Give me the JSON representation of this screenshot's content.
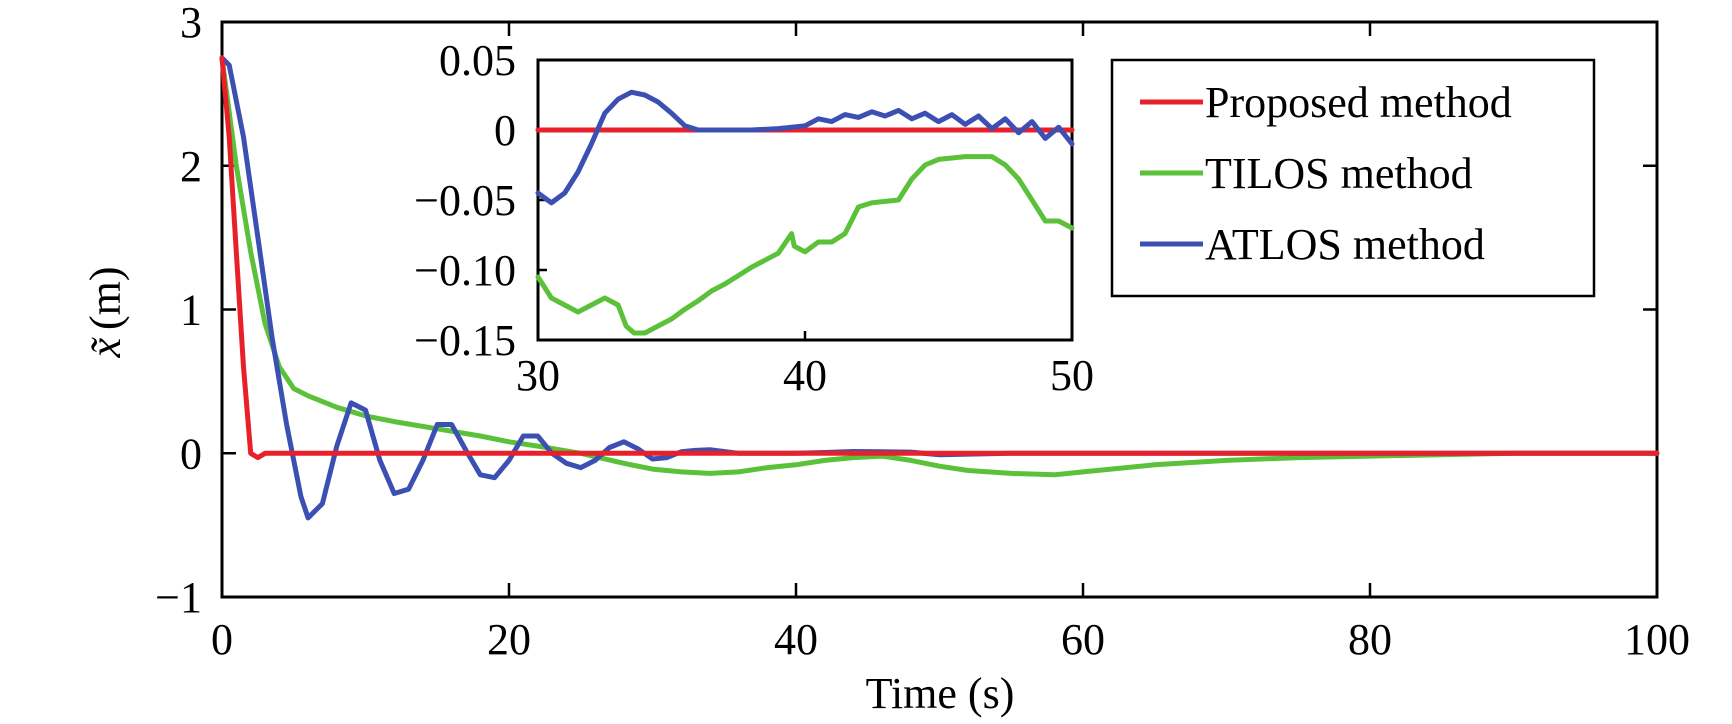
{
  "chart_data": [
    {
      "type": "line",
      "xlabel": "Time (s)",
      "ylabel": "(m)",
      "ylabel_symbol": "x̃",
      "xlim": [
        0,
        100
      ],
      "ylim": [
        -1,
        3
      ],
      "xticks": [
        "0",
        "20",
        "40",
        "60",
        "80",
        "100"
      ],
      "yticks": [
        "−1",
        "0",
        "1",
        "2",
        "3"
      ],
      "grid": false,
      "legend_position": "top-right",
      "series": [
        {
          "name": "Proposed method",
          "color": "#e8202a",
          "x": [
            0,
            0.5,
            1,
            1.5,
            2,
            2.5,
            3,
            4,
            6,
            10,
            20,
            40,
            60,
            80,
            100
          ],
          "y": [
            2.75,
            2.2,
            1.4,
            0.6,
            0.0,
            -0.03,
            0.0,
            0.0,
            0.0,
            0.0,
            0.0,
            0.0,
            0.0,
            0.0,
            0.0
          ]
        },
        {
          "name": "TILOS method",
          "color": "#5cc13a",
          "x": [
            0,
            1,
            2,
            3,
            4,
            5,
            6,
            8,
            10,
            12,
            15,
            18,
            20,
            22,
            25,
            28,
            30,
            32,
            34,
            36,
            38,
            40,
            42,
            44,
            46,
            48,
            50,
            52,
            55,
            58,
            60,
            65,
            70,
            75,
            80,
            85,
            90,
            100
          ],
          "y": [
            2.75,
            2.0,
            1.4,
            0.9,
            0.6,
            0.45,
            0.4,
            0.32,
            0.26,
            0.22,
            0.17,
            0.12,
            0.08,
            0.05,
            0.0,
            -0.07,
            -0.11,
            -0.13,
            -0.14,
            -0.13,
            -0.1,
            -0.08,
            -0.05,
            -0.03,
            -0.02,
            -0.05,
            -0.09,
            -0.12,
            -0.14,
            -0.15,
            -0.13,
            -0.08,
            -0.05,
            -0.03,
            -0.02,
            -0.01,
            0.0,
            0.0
          ]
        },
        {
          "name": "ATLOS method",
          "color": "#3c50b4",
          "x": [
            0,
            0.5,
            1.5,
            2.5,
            3.5,
            4.5,
            5.5,
            6,
            7,
            8,
            9,
            10,
            11,
            12,
            13,
            14,
            15,
            16,
            17,
            18,
            19,
            20,
            21,
            22,
            23,
            24,
            25,
            26,
            27,
            28,
            29,
            30,
            31,
            32,
            33,
            34,
            36,
            38,
            40,
            42,
            44,
            46,
            48,
            50,
            55,
            60,
            70,
            80,
            90,
            100
          ],
          "y": [
            2.75,
            2.7,
            2.2,
            1.5,
            0.8,
            0.2,
            -0.3,
            -0.45,
            -0.35,
            0.05,
            0.35,
            0.3,
            -0.05,
            -0.28,
            -0.25,
            -0.05,
            0.2,
            0.2,
            0.02,
            -0.15,
            -0.17,
            -0.05,
            0.12,
            0.12,
            0.0,
            -0.07,
            -0.1,
            -0.05,
            0.04,
            0.08,
            0.03,
            -0.04,
            -0.03,
            0.01,
            0.02,
            0.025,
            0.0,
            0.0,
            0.0,
            0.005,
            0.012,
            0.01,
            0.008,
            -0.01,
            0.0,
            0.0,
            0.0,
            0.0,
            0.0,
            0.0
          ]
        }
      ]
    },
    {
      "type": "line",
      "inset": true,
      "xlim": [
        30,
        50
      ],
      "ylim": [
        -0.15,
        0.05
      ],
      "xticks": [
        "30",
        "40",
        "50"
      ],
      "yticks": [
        "0.05",
        "0",
        "−0.05",
        "−0.10",
        "−0.15"
      ],
      "grid": false,
      "series": [
        {
          "name": "Proposed method",
          "color": "#e8202a",
          "x": [
            30,
            50
          ],
          "y": [
            0.0,
            0.0
          ]
        },
        {
          "name": "TILOS method",
          "color": "#5cc13a",
          "x": [
            30,
            30.5,
            31,
            31.5,
            32,
            32.5,
            33,
            33.3,
            33.6,
            34,
            34.5,
            35,
            35.5,
            36,
            36.5,
            37,
            37.5,
            38,
            38.5,
            39,
            39.5,
            39.6,
            40,
            40.5,
            41,
            41.5,
            42,
            42.5,
            43,
            43.5,
            44,
            44.5,
            45,
            46,
            47,
            47.5,
            48,
            48.5,
            49,
            49.5,
            50
          ],
          "y": [
            -0.105,
            -0.12,
            -0.125,
            -0.13,
            -0.125,
            -0.12,
            -0.125,
            -0.14,
            -0.145,
            -0.145,
            -0.14,
            -0.135,
            -0.128,
            -0.122,
            -0.115,
            -0.11,
            -0.104,
            -0.098,
            -0.093,
            -0.088,
            -0.074,
            -0.083,
            -0.087,
            -0.08,
            -0.08,
            -0.074,
            -0.055,
            -0.052,
            -0.051,
            -0.05,
            -0.035,
            -0.025,
            -0.021,
            -0.019,
            -0.019,
            -0.025,
            -0.035,
            -0.05,
            -0.065,
            -0.065,
            -0.07
          ]
        },
        {
          "name": "ATLOS method",
          "color": "#3c50b4",
          "x": [
            30,
            30.5,
            31,
            31.5,
            32,
            32.5,
            33,
            33.5,
            34,
            34.5,
            35,
            35.5,
            36,
            37,
            38,
            39,
            40,
            40.5,
            41,
            41.5,
            42,
            42.5,
            43,
            43.5,
            44,
            44.5,
            45,
            45.5,
            46,
            46.5,
            47,
            47.5,
            48,
            48.5,
            49,
            49.5,
            50
          ],
          "y": [
            -0.045,
            -0.052,
            -0.045,
            -0.03,
            -0.01,
            0.012,
            0.022,
            0.027,
            0.025,
            0.02,
            0.012,
            0.003,
            0.0,
            0.0,
            0.0,
            0.001,
            0.003,
            0.008,
            0.006,
            0.011,
            0.009,
            0.013,
            0.01,
            0.014,
            0.008,
            0.012,
            0.006,
            0.011,
            0.004,
            0.01,
            0.001,
            0.008,
            -0.002,
            0.006,
            -0.006,
            0.002,
            -0.01
          ]
        }
      ]
    }
  ]
}
